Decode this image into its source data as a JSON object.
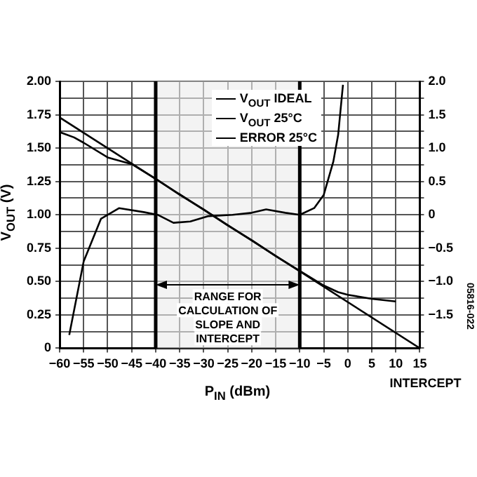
{
  "chart_data": {
    "type": "line",
    "xlabel": "P$_{IN}$ (dBm)",
    "ylabel": "V$_{OUT}$ (V)",
    "xlim": [
      -60,
      15
    ],
    "xticks": [
      {
        "value": -60,
        "label": "−60"
      },
      {
        "value": -55,
        "label": "−55"
      },
      {
        "value": -50,
        "label": "−50"
      },
      {
        "value": -45,
        "label": "−45"
      },
      {
        "value": -40,
        "label": "−40"
      },
      {
        "value": -35,
        "label": "−35"
      },
      {
        "value": -30,
        "label": "−30"
      },
      {
        "value": -25,
        "label": "−25"
      },
      {
        "value": -20,
        "label": "−20"
      },
      {
        "value": -15,
        "label": "−15"
      },
      {
        "value": -10,
        "label": "−10"
      },
      {
        "value": -5,
        "label": "−5"
      },
      0,
      5,
      10,
      15
    ],
    "ylim": [
      0,
      2
    ],
    "yticks": [
      0,
      {
        "value": 0.25,
        "label": "0.25"
      },
      {
        "value": 0.5,
        "label": "0.50"
      },
      {
        "value": 0.75,
        "label": "0.75"
      },
      {
        "value": 1,
        "label": "1.00"
      },
      {
        "value": 1.25,
        "label": "1.25"
      },
      {
        "value": 1.5,
        "label": "1.50"
      },
      {
        "value": 1.75,
        "label": "1.75"
      },
      {
        "value": 2,
        "label": "2.00"
      }
    ],
    "y2lim": [
      -2,
      2
    ],
    "y2ticks": [
      {
        "value": -2,
        "label": null
      },
      {
        "value": -1.75,
        "label": null
      },
      {
        "value": -1.5,
        "label": "−1.5"
      },
      {
        "value": -1.25,
        "label": null
      },
      {
        "value": -1,
        "label": "−1.0"
      },
      {
        "value": -0.75,
        "label": null
      },
      {
        "value": -0.5,
        "label": "−0.5"
      },
      {
        "value": -0.25,
        "label": null
      },
      0,
      {
        "value": 0.25,
        "label": null
      },
      {
        "value": 0.5,
        "label": "0.5"
      },
      {
        "value": 0.75,
        "label": null
      },
      {
        "value": 1,
        "label": "1.0"
      },
      {
        "value": 1.25,
        "label": null
      },
      {
        "value": 1.5,
        "label": "1.5"
      },
      {
        "value": 1.75,
        "label": null
      },
      {
        "value": 2,
        "label": "2.0"
      }
    ],
    "grid": true,
    "legend": "top",
    "marker": "none",
    "series": [
      {
        "name": "V$_{OUT}$ IDEAL",
        "color": "#000000",
        "x": [
          -60,
          15
        ],
        "values": [
          1.73,
          0
        ]
      },
      {
        "name": "V$_{OUT}$ 25°C",
        "color": "#000000",
        "x": [
          -60,
          -57,
          -55,
          -50,
          -45,
          -40,
          -35,
          -30,
          -25,
          -20,
          -15,
          -10,
          -5,
          -2,
          0,
          5,
          10
        ],
        "values": [
          1.62,
          1.58,
          1.54,
          1.43,
          1.38,
          1.27,
          1.15,
          1.04,
          0.92,
          0.81,
          0.69,
          0.58,
          0.47,
          0.42,
          0.4,
          0.37,
          0.35
        ]
      },
      {
        "name": "ERROR 25°C",
        "color": "#000000",
        "axis": "y2",
        "x": [
          -58,
          -55,
          -51.4,
          -47.6,
          -42.5,
          -39.6,
          -36.3,
          -32.8,
          -29,
          -24,
          -20,
          -17,
          -13,
          -10,
          -7,
          -5,
          -3,
          -2,
          -1
        ],
        "values": [
          -1.8,
          -0.7,
          -0.06,
          0.1,
          0.04,
          0,
          -0.12,
          -0.1,
          -0.02,
          0,
          0.03,
          0.08,
          0.03,
          0,
          0.1,
          0.3,
          0.8,
          1.2,
          1.95
        ]
      }
    ],
    "bands": [
      {
        "axis": "x",
        "from": -40,
        "to": -10,
        "color": "#ebebeb",
        "label": "RANGE FOR CALCULATION OF SLOPE AND INTERCEPT"
      }
    ],
    "annotations": [
      {
        "text": "INTERCEPT",
        "x": 15,
        "y": 0
      },
      "05816-022"
    ]
  }
}
